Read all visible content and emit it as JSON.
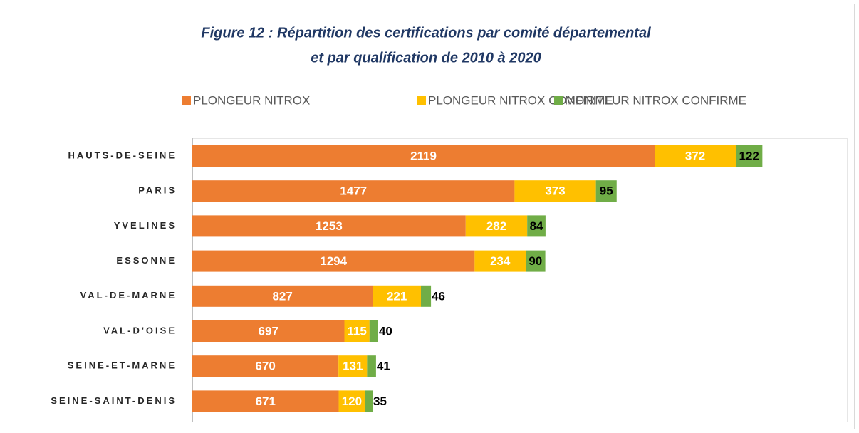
{
  "chart_data": {
    "type": "stacked-barh",
    "title": [
      "Figure 12 : Répartition des certifications par comité départemental",
      "et par qualification de 2010 à 2020"
    ],
    "categories": [
      "HAUTS-DE-SEINE",
      "PARIS",
      "YVELINES",
      "ESSONNE",
      "VAL-DE-MARNE",
      "VAL-D'OISE",
      "SEINE-ET-MARNE",
      "SEINE-SAINT-DENIS"
    ],
    "series": [
      {
        "name": "PLONGEUR NITROX",
        "color": "#ed7d31",
        "values": [
          2119,
          1477,
          1253,
          1294,
          827,
          697,
          670,
          671
        ]
      },
      {
        "name": "PLONGEUR NITROX CONFIRME",
        "color": "#ffc000",
        "values": [
          372,
          373,
          282,
          234,
          221,
          115,
          131,
          120
        ]
      },
      {
        "name": "MONITEUR NITROX CONFIRME",
        "color": "#70ad47",
        "values": [
          122,
          95,
          84,
          90,
          46,
          40,
          41,
          35
        ]
      }
    ],
    "legend": "top"
  }
}
